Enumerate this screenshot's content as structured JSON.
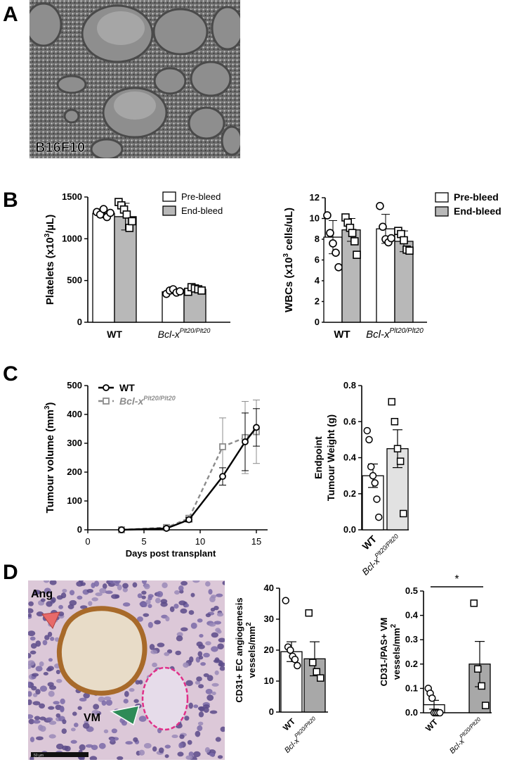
{
  "panels": {
    "A": "A",
    "B": "B",
    "C": "C",
    "D": "D"
  },
  "colors": {
    "white_bar": "#ffffff",
    "grey_bar": "#b8b8b8",
    "grey_line": "#8c8c8c",
    "vm_outline": "#e0308a",
    "ang_arrow": "#e86a6a",
    "vm_arrow": "#2e8b57"
  },
  "micrograph_A": {
    "label": "B16F10"
  },
  "histology_D": {
    "labels": {
      "ang": "Ang",
      "vm": "VM"
    },
    "scale_bar": "50 µm"
  },
  "chart_data": [
    {
      "id": "platelets",
      "type": "bar",
      "ylabel_main": "Platelets (x10",
      "ylabel_sup": "3",
      "ylabel_tail": "/µL)",
      "ylim": [
        0,
        1500
      ],
      "yticks": [
        "0",
        "500",
        "1000",
        "1500"
      ],
      "groups": [
        {
          "main": "WT",
          "sup": ""
        },
        {
          "main": "Bcl-x",
          "sup": "Plt20/Plt20",
          "italic": true
        }
      ],
      "legend": [
        "Pre-bleed",
        "End-bleed"
      ],
      "series": [
        {
          "name": "Pre-bleed",
          "values": [
            1305,
            365
          ],
          "sd": [
            55,
            25
          ],
          "points": [
            [
              1320,
              1290,
              1355,
              1260,
              1310
            ],
            [
              340,
              380,
              395,
              355,
              370
            ]
          ]
        },
        {
          "name": "End-bleed",
          "values": [
            1265,
            395
          ],
          "sd": [
            160,
            30
          ],
          "points": [
            [
              1440,
              1400,
              1350,
              1290,
              1130,
              1210
            ],
            [
              365,
              420,
              405,
              395,
              380
            ]
          ]
        }
      ]
    },
    {
      "id": "wbc",
      "type": "bar",
      "ylabel_main": "WBCs (x10",
      "ylabel_sup": "3",
      "ylabel_tail": " cells/uL)",
      "ylim": [
        0,
        12
      ],
      "yticks": [
        "0",
        "2",
        "4",
        "6",
        "8",
        "10",
        "12"
      ],
      "groups": [
        {
          "main": "WT",
          "sup": ""
        },
        {
          "main": "Bcl-x",
          "sup": "Plt20/Plt20",
          "italic": true
        }
      ],
      "legend": [
        "Pre-bleed",
        "End-bleed"
      ],
      "series": [
        {
          "name": "Pre-bleed",
          "values": [
            8.2,
            9.0
          ],
          "sd": [
            1.6,
            1.4
          ],
          "points": [
            [
              10.3,
              8.6,
              7.6,
              6.7,
              5.3
            ],
            [
              11.2,
              9.2,
              8.0,
              7.7,
              8.1
            ]
          ]
        },
        {
          "name": "End-bleed",
          "values": [
            8.9,
            7.8
          ],
          "sd": [
            1.1,
            1.0
          ],
          "points": [
            [
              10.1,
              9.6,
              9.1,
              8.6,
              7.8,
              6.5
            ],
            [
              8.8,
              8.5,
              7.9,
              7.0,
              6.9
            ]
          ]
        }
      ]
    },
    {
      "id": "tumour_volume",
      "type": "line",
      "xlabel": "Days post transplant",
      "ylabel_main": "Tumour volume (mm",
      "ylabel_sup": "3",
      "ylabel_tail": ")",
      "xlim": [
        0,
        16
      ],
      "xticks": [
        "0",
        "5",
        "10",
        "15"
      ],
      "ylim": [
        0,
        500
      ],
      "yticks": [
        "0",
        "100",
        "200",
        "300",
        "400",
        "500"
      ],
      "series": [
        {
          "name": "WT",
          "x": [
            3,
            7,
            9,
            12,
            14,
            15
          ],
          "y": [
            0,
            5,
            35,
            185,
            305,
            355
          ],
          "err": [
            3,
            5,
            8,
            30,
            100,
            65
          ]
        },
        {
          "name": "Bcl-x",
          "sup": "Plt20/Plt20",
          "x": [
            3,
            7,
            9,
            12,
            14,
            15
          ],
          "y": [
            0,
            8,
            40,
            288,
            320,
            340
          ],
          "err": [
            3,
            5,
            10,
            100,
            125,
            110
          ]
        }
      ]
    },
    {
      "id": "tumour_weight",
      "type": "bar",
      "ylabel_lines": [
        "Endpoint",
        "Tumour Weight (g)"
      ],
      "ylim": [
        0,
        0.8
      ],
      "yticks": [
        "0.0",
        "0.2",
        "0.4",
        "0.6",
        "0.8"
      ],
      "categories": [
        {
          "main": "WT",
          "sup": ""
        },
        {
          "main": "Bcl-x",
          "sup": "Plt20/Plt20"
        }
      ],
      "values": [
        0.3,
        0.45
      ],
      "sem": [
        0.065,
        0.105
      ],
      "points": [
        [
          0.55,
          0.5,
          0.35,
          0.3,
          0.26,
          0.17,
          0.07
        ],
        [
          0.71,
          0.6,
          0.45,
          0.38,
          0.09
        ]
      ]
    },
    {
      "id": "angiogenesis",
      "type": "bar",
      "ylabel_lines": [
        "CD31+ EC angiogenesis",
        "vessels/mm"
      ],
      "ylabel_sup": "2",
      "ylim": [
        0,
        40
      ],
      "yticks": [
        "0",
        "10",
        "20",
        "30",
        "40"
      ],
      "categories": [
        {
          "main": "WT",
          "sup": ""
        },
        {
          "main": "Bcl-x",
          "sup": "Plt20/Plt20"
        }
      ],
      "values": [
        19.5,
        17.2
      ],
      "sem": [
        3.2,
        5.5
      ],
      "points": [
        [
          36,
          21,
          20,
          18,
          17,
          15
        ],
        [
          32,
          16,
          13,
          11
        ]
      ]
    },
    {
      "id": "vm",
      "type": "bar",
      "ylabel_lines": [
        "CD31-/PAS+ VM",
        "vessels/mm"
      ],
      "ylabel_sup": "2",
      "ylim": [
        0,
        0.5
      ],
      "yticks": [
        "0.0",
        "0.1",
        "0.2",
        "0.3",
        "0.4",
        "0.5"
      ],
      "categories": [
        {
          "main": "WT",
          "sup": ""
        },
        {
          "main": "Bcl-x",
          "sup": "Plt20/Plt20"
        }
      ],
      "values": [
        0.033,
        0.2
      ],
      "sem": [
        0.018,
        0.093
      ],
      "points": [
        [
          0.1,
          0.08,
          0.06,
          0.0,
          0.0,
          0.0,
          0.0
        ],
        [
          0.45,
          0.18,
          0.11,
          0.03
        ]
      ],
      "significance": "*"
    }
  ]
}
